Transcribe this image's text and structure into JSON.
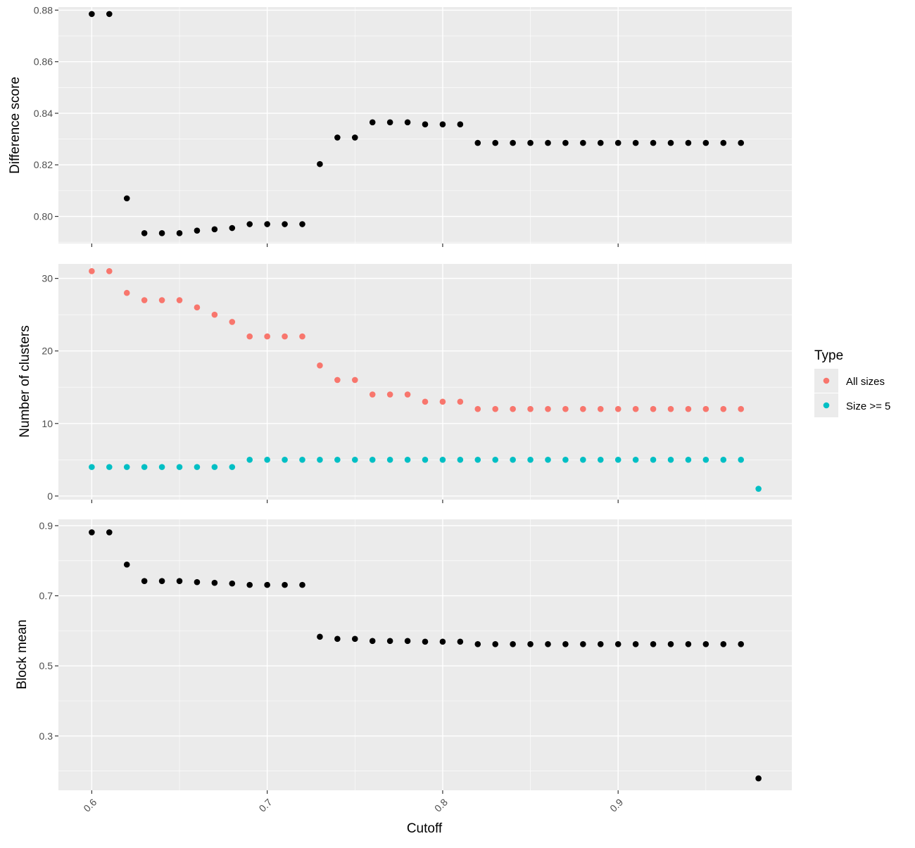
{
  "chart_data": [
    {
      "type": "scatter",
      "ylabel": "Difference score",
      "xlim": [
        0.581,
        0.999
      ],
      "ylim": [
        0.7895,
        0.8812
      ],
      "xticks": [
        0.6,
        0.7,
        0.8,
        0.9
      ],
      "yticks": [
        0.8,
        0.82,
        0.84,
        0.86,
        0.88
      ],
      "ytick_labels": [
        "0.80",
        "0.82",
        "0.84",
        "0.86",
        "0.88"
      ],
      "series": [
        {
          "color": "#000000",
          "points": [
            [
              0.6,
              0.8785
            ],
            [
              0.61,
              0.8785
            ],
            [
              0.62,
              0.807
            ],
            [
              0.63,
              0.7935
            ],
            [
              0.64,
              0.7935
            ],
            [
              0.65,
              0.7935
            ],
            [
              0.66,
              0.7945
            ],
            [
              0.67,
              0.795
            ],
            [
              0.68,
              0.7955
            ],
            [
              0.69,
              0.797
            ],
            [
              0.7,
              0.797
            ],
            [
              0.71,
              0.797
            ],
            [
              0.72,
              0.797
            ],
            [
              0.73,
              0.8203
            ],
            [
              0.74,
              0.8306
            ],
            [
              0.75,
              0.8306
            ],
            [
              0.76,
              0.8365
            ],
            [
              0.77,
              0.8365
            ],
            [
              0.78,
              0.8365
            ],
            [
              0.79,
              0.8357
            ],
            [
              0.8,
              0.8357
            ],
            [
              0.81,
              0.8357
            ],
            [
              0.82,
              0.8285
            ],
            [
              0.83,
              0.8285
            ],
            [
              0.84,
              0.8285
            ],
            [
              0.85,
              0.8285
            ],
            [
              0.86,
              0.8285
            ],
            [
              0.87,
              0.8285
            ],
            [
              0.88,
              0.8285
            ],
            [
              0.89,
              0.8285
            ],
            [
              0.9,
              0.8285
            ],
            [
              0.91,
              0.8285
            ],
            [
              0.92,
              0.8285
            ],
            [
              0.93,
              0.8285
            ],
            [
              0.94,
              0.8285
            ],
            [
              0.95,
              0.8285
            ],
            [
              0.96,
              0.8285
            ],
            [
              0.97,
              0.8285
            ]
          ]
        }
      ]
    },
    {
      "type": "scatter",
      "ylabel": "Number of clusters",
      "xlim": [
        0.581,
        0.999
      ],
      "ylim": [
        -0.5,
        32.0
      ],
      "xticks": [
        0.6,
        0.7,
        0.8,
        0.9
      ],
      "yticks": [
        0,
        10,
        20,
        30
      ],
      "ytick_labels": [
        "0",
        "10",
        "20",
        "30"
      ],
      "series": [
        {
          "name": "All sizes",
          "color": "#f8766d",
          "points": [
            [
              0.6,
              31
            ],
            [
              0.61,
              31
            ],
            [
              0.62,
              28
            ],
            [
              0.63,
              27
            ],
            [
              0.64,
              27
            ],
            [
              0.65,
              27
            ],
            [
              0.66,
              26
            ],
            [
              0.67,
              25
            ],
            [
              0.68,
              24
            ],
            [
              0.69,
              22
            ],
            [
              0.7,
              22
            ],
            [
              0.71,
              22
            ],
            [
              0.72,
              22
            ],
            [
              0.73,
              18
            ],
            [
              0.74,
              16
            ],
            [
              0.75,
              16
            ],
            [
              0.76,
              14
            ],
            [
              0.77,
              14
            ],
            [
              0.78,
              14
            ],
            [
              0.79,
              13
            ],
            [
              0.8,
              13
            ],
            [
              0.81,
              13
            ],
            [
              0.82,
              12
            ],
            [
              0.83,
              12
            ],
            [
              0.84,
              12
            ],
            [
              0.85,
              12
            ],
            [
              0.86,
              12
            ],
            [
              0.87,
              12
            ],
            [
              0.88,
              12
            ],
            [
              0.89,
              12
            ],
            [
              0.9,
              12
            ],
            [
              0.91,
              12
            ],
            [
              0.92,
              12
            ],
            [
              0.93,
              12
            ],
            [
              0.94,
              12
            ],
            [
              0.95,
              12
            ],
            [
              0.96,
              12
            ],
            [
              0.97,
              12
            ]
          ]
        },
        {
          "name": "Size >= 5",
          "color": "#00bfc4",
          "points": [
            [
              0.6,
              4
            ],
            [
              0.61,
              4
            ],
            [
              0.62,
              4
            ],
            [
              0.63,
              4
            ],
            [
              0.64,
              4
            ],
            [
              0.65,
              4
            ],
            [
              0.66,
              4
            ],
            [
              0.67,
              4
            ],
            [
              0.68,
              4
            ],
            [
              0.69,
              5
            ],
            [
              0.7,
              5
            ],
            [
              0.71,
              5
            ],
            [
              0.72,
              5
            ],
            [
              0.73,
              5
            ],
            [
              0.74,
              5
            ],
            [
              0.75,
              5
            ],
            [
              0.76,
              5
            ],
            [
              0.77,
              5
            ],
            [
              0.78,
              5
            ],
            [
              0.79,
              5
            ],
            [
              0.8,
              5
            ],
            [
              0.81,
              5
            ],
            [
              0.82,
              5
            ],
            [
              0.83,
              5
            ],
            [
              0.84,
              5
            ],
            [
              0.85,
              5
            ],
            [
              0.86,
              5
            ],
            [
              0.87,
              5
            ],
            [
              0.88,
              5
            ],
            [
              0.89,
              5
            ],
            [
              0.9,
              5
            ],
            [
              0.91,
              5
            ],
            [
              0.92,
              5
            ],
            [
              0.93,
              5
            ],
            [
              0.94,
              5
            ],
            [
              0.95,
              5
            ],
            [
              0.96,
              5
            ],
            [
              0.97,
              5
            ],
            [
              0.98,
              1
            ]
          ]
        }
      ]
    },
    {
      "type": "scatter",
      "ylabel": "Block mean",
      "xlabel": "Cutoff",
      "xlim": [
        0.581,
        0.999
      ],
      "ylim": [
        0.145,
        0.918
      ],
      "xticks": [
        0.6,
        0.7,
        0.8,
        0.9
      ],
      "xtick_labels": [
        "0.6",
        "0.7",
        "0.8",
        "0.9"
      ],
      "yticks": [
        0.3,
        0.5,
        0.7,
        0.9
      ],
      "ytick_labels": [
        "0.3",
        "0.5",
        "0.7",
        "0.9"
      ],
      "series": [
        {
          "color": "#000000",
          "points": [
            [
              0.6,
              0.881
            ],
            [
              0.61,
              0.881
            ],
            [
              0.62,
              0.789
            ],
            [
              0.63,
              0.742
            ],
            [
              0.64,
              0.742
            ],
            [
              0.65,
              0.742
            ],
            [
              0.66,
              0.739
            ],
            [
              0.67,
              0.737
            ],
            [
              0.68,
              0.735
            ],
            [
              0.69,
              0.731
            ],
            [
              0.7,
              0.731
            ],
            [
              0.71,
              0.731
            ],
            [
              0.72,
              0.731
            ],
            [
              0.73,
              0.583
            ],
            [
              0.74,
              0.577
            ],
            [
              0.75,
              0.577
            ],
            [
              0.76,
              0.571
            ],
            [
              0.77,
              0.571
            ],
            [
              0.78,
              0.571
            ],
            [
              0.79,
              0.569
            ],
            [
              0.8,
              0.569
            ],
            [
              0.81,
              0.569
            ],
            [
              0.82,
              0.562
            ],
            [
              0.83,
              0.562
            ],
            [
              0.84,
              0.562
            ],
            [
              0.85,
              0.562
            ],
            [
              0.86,
              0.562
            ],
            [
              0.87,
              0.562
            ],
            [
              0.88,
              0.562
            ],
            [
              0.89,
              0.562
            ],
            [
              0.9,
              0.562
            ],
            [
              0.91,
              0.562
            ],
            [
              0.92,
              0.562
            ],
            [
              0.93,
              0.562
            ],
            [
              0.94,
              0.562
            ],
            [
              0.95,
              0.562
            ],
            [
              0.96,
              0.562
            ],
            [
              0.97,
              0.562
            ],
            [
              0.98,
              0.179
            ]
          ]
        }
      ]
    }
  ],
  "legend": {
    "title": "Type",
    "items": [
      {
        "label": "All sizes",
        "color": "#f8766d"
      },
      {
        "label": "Size >= 5",
        "color": "#00bfc4"
      }
    ]
  },
  "colors": {
    "panel_background": "#ebebeb",
    "grid_major": "#ffffff",
    "tick_text": "#4d4d4d"
  }
}
